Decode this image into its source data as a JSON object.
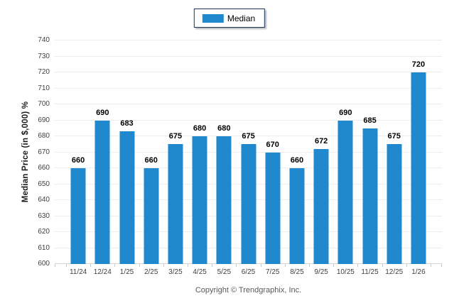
{
  "legend": {
    "label": "Median"
  },
  "footer": {
    "copyright": "Copyright © Trendgraphix, Inc."
  },
  "colors": {
    "bar": "#2089cd",
    "gridline": "#ececec",
    "baseline": "#d4d4d4",
    "tick": "#c9c9c9",
    "axis_label": "#3f3f3f",
    "data_label": "#000000",
    "legend_border": "#17375e"
  },
  "chart_data": {
    "type": "bar",
    "title": "",
    "categories": [
      "11/24",
      "12/24",
      "1/25",
      "2/25",
      "3/25",
      "4/25",
      "5/25",
      "6/25",
      "7/25",
      "8/25",
      "9/25",
      "10/25",
      "11/25",
      "12/25",
      "1/26"
    ],
    "series": [
      {
        "name": "Median",
        "values": [
          660,
          690,
          683,
          660,
          675,
          680,
          680,
          675,
          670,
          660,
          672,
          690,
          685,
          675,
          720
        ]
      }
    ],
    "xlabel": "",
    "ylabel": "Median Price (in $,000) %",
    "ylim": [
      600,
      740
    ],
    "ytick_step": 10,
    "grid": "horizontal",
    "legend_position": "top-center",
    "data_labels": true
  }
}
